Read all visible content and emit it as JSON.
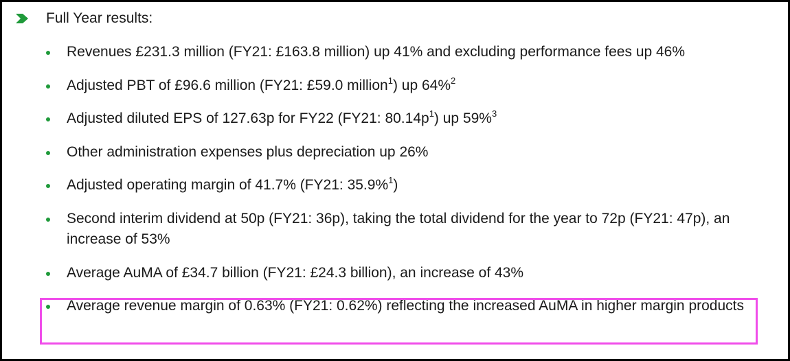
{
  "heading": "Full Year results:",
  "icons": {
    "heading_marker": "chevron-right-icon",
    "bullet": "bullet-dot-icon"
  },
  "colors": {
    "accent_green": "#1f9a3a",
    "highlight_border": "#f04dea"
  },
  "items": [
    {
      "parts": [
        "Revenues £231.3 million (FY21: £163.8 million) up 41% and excluding performance fees up 46%"
      ]
    },
    {
      "parts": [
        "Adjusted PBT of £96.6 million (FY21: £59.0 million",
        "1",
        ") up 64%",
        "2"
      ]
    },
    {
      "parts": [
        "Adjusted diluted EPS of 127.63p for FY22 (FY21: 80.14p",
        "1",
        ") up 59%",
        "3"
      ]
    },
    {
      "parts": [
        "Other administration expenses plus depreciation up 26%"
      ]
    },
    {
      "parts": [
        "Adjusted operating margin of 41.7% (FY21: 35.9%",
        "1",
        ")"
      ]
    },
    {
      "parts": [
        "Second interim dividend at 50p (FY21: 36p), taking the total dividend for the year to 72p (FY21: 47p), an increase of 53%"
      ]
    },
    {
      "parts": [
        "Average AuMA of £34.7 billion (FY21: £24.3 billion), an increase of 43%"
      ]
    },
    {
      "parts": [
        "Average revenue margin of 0.63% (FY21: 0.62%) reflecting the increased AuMA in higher margin products"
      ]
    }
  ]
}
